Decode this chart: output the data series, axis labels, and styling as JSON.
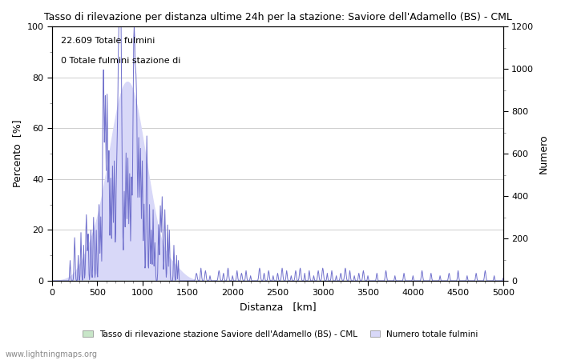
{
  "title": "Tasso di rilevazione per distanza ultime 24h per la stazione: Saviore dell'Adamello (BS) - CML",
  "xlabel": "Distanza   [km]",
  "ylabel_left": "Percento  [%]",
  "ylabel_right": "Numero",
  "annotation_line1": "22.609 Totale fulmini",
  "annotation_line2": "0 Totale fulmini stazione di",
  "legend_green": "Tasso di rilevazione stazione Saviore dell'Adamello (BS) - CML",
  "legend_blue": "Numero totale fulmini",
  "watermark": "www.lightningmaps.org",
  "xlim": [
    0,
    5000
  ],
  "ylim_left": [
    0,
    100
  ],
  "ylim_right": [
    0,
    1200
  ],
  "x_ticks": [
    0,
    500,
    1000,
    1500,
    2000,
    2500,
    3000,
    3500,
    4000,
    4500,
    5000
  ],
  "y_ticks_left": [
    0,
    20,
    40,
    60,
    80,
    100
  ],
  "y_ticks_right": [
    0,
    200,
    400,
    600,
    800,
    1000,
    1200
  ],
  "fill_green_color": "#c8e6c8",
  "fill_blue_color": "#d8d8f8",
  "line_blue_color": "#7070cc",
  "background_color": "#ffffff",
  "grid_color": "#bbbbbb",
  "minor_tick_color": "#888888"
}
